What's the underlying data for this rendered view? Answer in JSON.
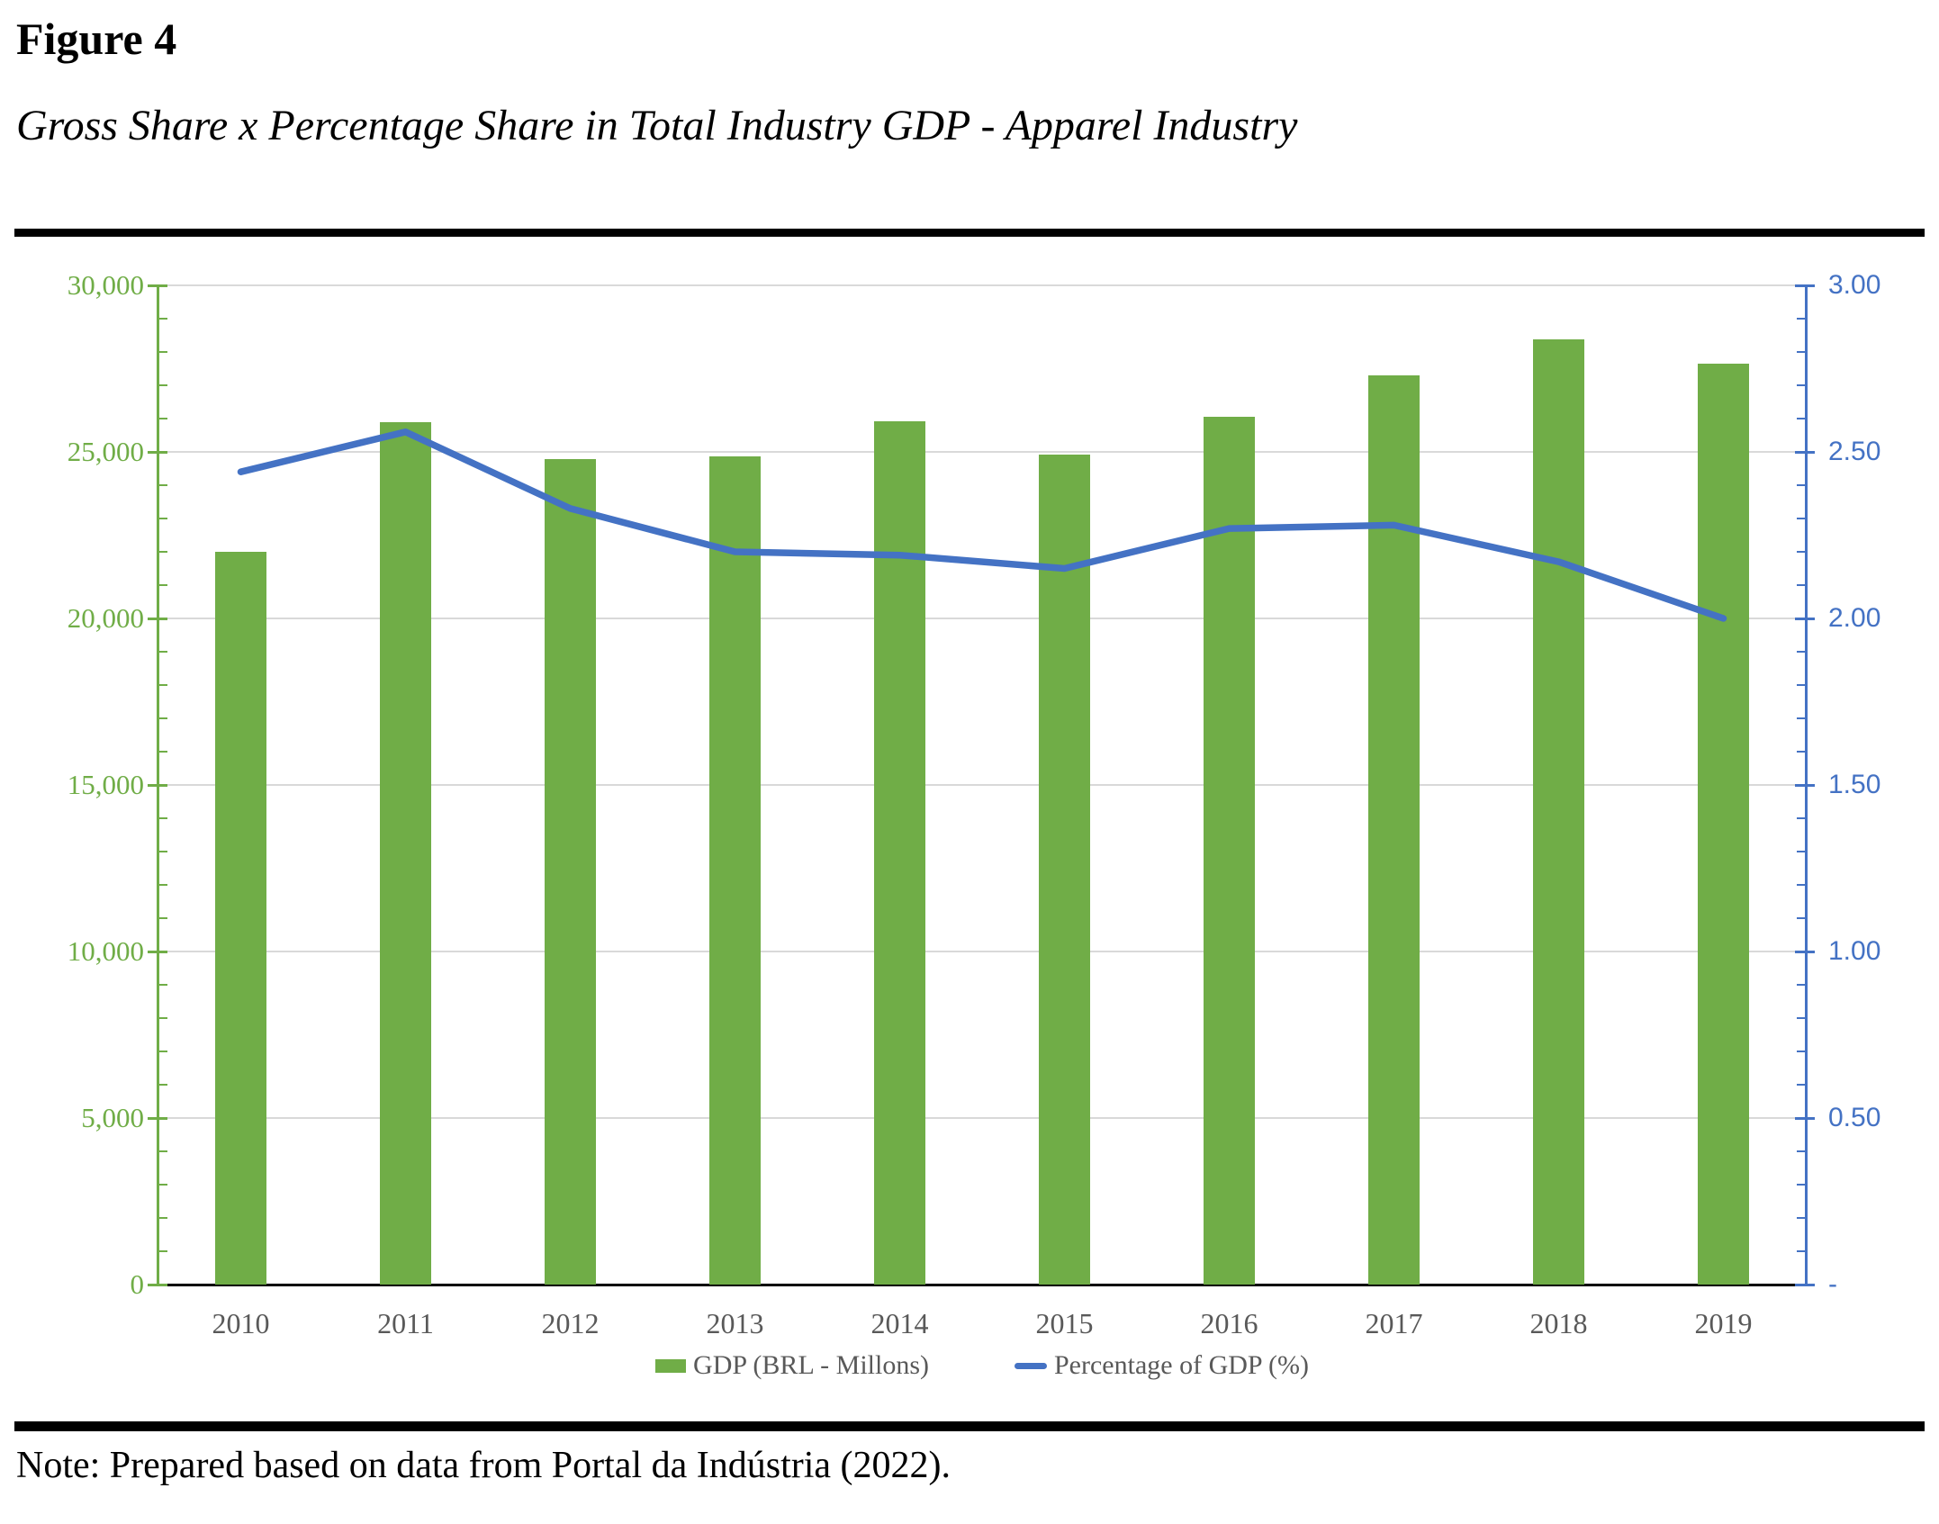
{
  "header": {
    "figure_label": "Figure 4",
    "figure_title": "Gross Share x Percentage Share in Total Industry GDP - Apparel Industry"
  },
  "note": "Note: Prepared based on data from Portal da Indústria (2022).",
  "chart_data": {
    "type": "combo-bar-line",
    "categories": [
      "2010",
      "2011",
      "2012",
      "2013",
      "2014",
      "2015",
      "2016",
      "2017",
      "2018",
      "2019"
    ],
    "series": [
      {
        "name": "GDP (BRL - Millons)",
        "type": "bar",
        "axis": "left",
        "color": "#70AD47",
        "values": [
          22000,
          25880,
          24790,
          24870,
          25910,
          24920,
          26050,
          27300,
          28390,
          27640
        ]
      },
      {
        "name": "Percentage of GDP (%)",
        "type": "line",
        "axis": "right",
        "color": "#4472C4",
        "values": [
          2.44,
          2.56,
          2.33,
          2.2,
          2.19,
          2.15,
          2.27,
          2.28,
          2.17,
          2.0
        ]
      }
    ],
    "left_axis": {
      "min": 0,
      "max": 30000,
      "minor_unit": 1000,
      "major_unit": 5000,
      "color": "#70AD47",
      "tick_labels": [
        "30,000",
        "25,000",
        "20,000",
        "15,000",
        "10,000",
        "5,000",
        "0"
      ]
    },
    "right_axis": {
      "min": 0,
      "max": 3,
      "minor_unit": 0.1,
      "major_unit": 0.5,
      "color": "#4472C4",
      "tick_labels": [
        "3.00",
        "2.50",
        "2.00",
        "1.50",
        "1.00",
        "0.50",
        "-"
      ]
    },
    "grid": true,
    "gridline_color": "#D9D9D9",
    "x_axis_color": "#000000",
    "x_label_color": "#595959",
    "legend_position": "bottom"
  }
}
